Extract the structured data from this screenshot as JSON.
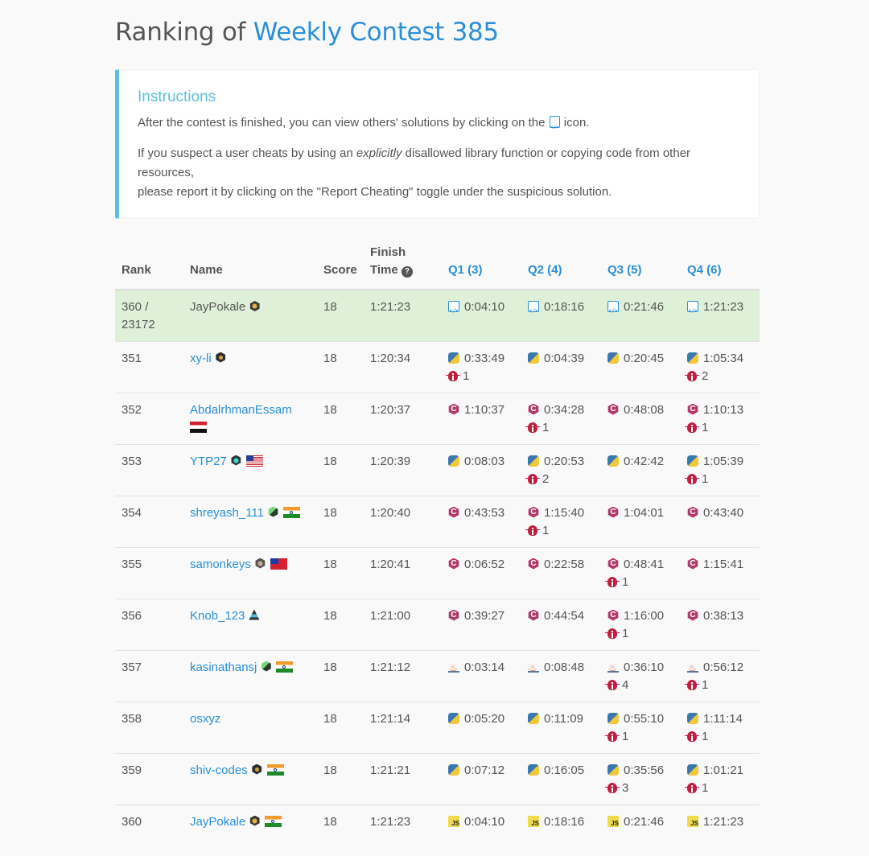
{
  "title": {
    "prefix": "Ranking of ",
    "contest": "Weekly Contest 385"
  },
  "instructions": {
    "heading": "Instructions",
    "p1_before": "After the contest is finished, you can view others' solutions by clicking on the ",
    "p1_after": " icon.",
    "p2_a": "If you suspect a user cheats by using an ",
    "p2_em": "explicitly",
    "p2_b": " disallowed library function or copying code from other resources,",
    "p2_c": "please report it by clicking on the \"Report Cheating\" toggle under the suspicious solution."
  },
  "table": {
    "headers": {
      "rank": "Rank",
      "name": "Name",
      "score": "Score",
      "finish_1": "Finish",
      "finish_2": "Time",
      "q1": "Q1 (3)",
      "q2": "Q2 (4)",
      "q3": "Q3 (5)",
      "q4": "Q4 (6)"
    },
    "rows": [
      {
        "rank": "360 / 23172",
        "name": "JayPokale",
        "badge": "gold",
        "flag": "",
        "score": "18",
        "finish": "1:21:23",
        "highlight": true,
        "q": [
          {
            "lang": "code",
            "time": "0:04:10",
            "bugs": ""
          },
          {
            "lang": "code",
            "time": "0:18:16",
            "bugs": ""
          },
          {
            "lang": "code",
            "time": "0:21:46",
            "bugs": ""
          },
          {
            "lang": "code",
            "time": "1:21:23",
            "bugs": ""
          }
        ]
      },
      {
        "rank": "351",
        "name": "xy-li",
        "badge": "dark",
        "flag": "",
        "score": "18",
        "finish": "1:20:34",
        "q": [
          {
            "lang": "py",
            "time": "0:33:49",
            "bugs": "1"
          },
          {
            "lang": "py",
            "time": "0:04:39",
            "bugs": ""
          },
          {
            "lang": "py",
            "time": "0:20:45",
            "bugs": ""
          },
          {
            "lang": "py",
            "time": "1:05:34",
            "bugs": "2"
          }
        ]
      },
      {
        "rank": "352",
        "name": "AbdalrhmanEssam",
        "badge": "",
        "flag": "eg",
        "score": "18",
        "finish": "1:20:37",
        "q": [
          {
            "lang": "cpp",
            "time": "1:10:37",
            "bugs": ""
          },
          {
            "lang": "cpp",
            "time": "0:34:28",
            "bugs": "1"
          },
          {
            "lang": "cpp",
            "time": "0:48:08",
            "bugs": ""
          },
          {
            "lang": "cpp",
            "time": "1:10:13",
            "bugs": "1"
          }
        ]
      },
      {
        "rank": "353",
        "name": "YTP27",
        "badge": "teal",
        "flag": "us",
        "score": "18",
        "finish": "1:20:39",
        "q": [
          {
            "lang": "py",
            "time": "0:08:03",
            "bugs": ""
          },
          {
            "lang": "py",
            "time": "0:20:53",
            "bugs": "2"
          },
          {
            "lang": "py",
            "time": "0:42:42",
            "bugs": ""
          },
          {
            "lang": "py",
            "time": "1:05:39",
            "bugs": "1"
          }
        ]
      },
      {
        "rank": "354",
        "name": "shreyash_111",
        "badge": "green",
        "flag": "in",
        "score": "18",
        "finish": "1:20:40",
        "q": [
          {
            "lang": "cpp",
            "time": "0:43:53",
            "bugs": ""
          },
          {
            "lang": "cpp",
            "time": "1:15:40",
            "bugs": "1"
          },
          {
            "lang": "cpp",
            "time": "1:04:01",
            "bugs": ""
          },
          {
            "lang": "cpp",
            "time": "0:43:40",
            "bugs": ""
          }
        ]
      },
      {
        "rank": "355",
        "name": "samonkeys",
        "badge": "gray",
        "flag": "tw",
        "score": "18",
        "finish": "1:20:41",
        "q": [
          {
            "lang": "cpp",
            "time": "0:06:52",
            "bugs": ""
          },
          {
            "lang": "cpp",
            "time": "0:22:58",
            "bugs": ""
          },
          {
            "lang": "cpp",
            "time": "0:48:41",
            "bugs": "1"
          },
          {
            "lang": "cpp",
            "time": "1:15:41",
            "bugs": ""
          }
        ]
      },
      {
        "rank": "356",
        "name": "Knob_123",
        "badge": "guard",
        "flag": "",
        "score": "18",
        "finish": "1:21:00",
        "q": [
          {
            "lang": "cpp",
            "time": "0:39:27",
            "bugs": ""
          },
          {
            "lang": "cpp",
            "time": "0:44:54",
            "bugs": ""
          },
          {
            "lang": "cpp",
            "time": "1:16:00",
            "bugs": "1"
          },
          {
            "lang": "cpp",
            "time": "0:38:13",
            "bugs": ""
          }
        ]
      },
      {
        "rank": "357",
        "name": "kasinathansj",
        "badge": "green",
        "flag": "in",
        "score": "18",
        "finish": "1:21:12",
        "q": [
          {
            "lang": "java",
            "time": "0:03:14",
            "bugs": ""
          },
          {
            "lang": "java",
            "time": "0:08:48",
            "bugs": ""
          },
          {
            "lang": "java",
            "time": "0:36:10",
            "bugs": "4"
          },
          {
            "lang": "java",
            "time": "0:56:12",
            "bugs": "1"
          }
        ]
      },
      {
        "rank": "358",
        "name": "osxyz",
        "badge": "",
        "flag": "",
        "score": "18",
        "finish": "1:21:14",
        "q": [
          {
            "lang": "py",
            "time": "0:05:20",
            "bugs": ""
          },
          {
            "lang": "py",
            "time": "0:11:09",
            "bugs": ""
          },
          {
            "lang": "py",
            "time": "0:55:10",
            "bugs": "1"
          },
          {
            "lang": "py",
            "time": "1:11:14",
            "bugs": "1"
          }
        ]
      },
      {
        "rank": "359",
        "name": "shiv-codes",
        "badge": "dark",
        "flag": "in",
        "score": "18",
        "finish": "1:21:21",
        "q": [
          {
            "lang": "py",
            "time": "0:07:12",
            "bugs": ""
          },
          {
            "lang": "py",
            "time": "0:16:05",
            "bugs": ""
          },
          {
            "lang": "py",
            "time": "0:35:56",
            "bugs": "3"
          },
          {
            "lang": "py",
            "time": "1:01:21",
            "bugs": "1"
          }
        ]
      },
      {
        "rank": "360",
        "name": "JayPokale",
        "badge": "gold",
        "flag": "in",
        "score": "18",
        "finish": "1:21:23",
        "q": [
          {
            "lang": "js",
            "time": "0:04:10",
            "bugs": ""
          },
          {
            "lang": "js",
            "time": "0:18:16",
            "bugs": ""
          },
          {
            "lang": "js",
            "time": "0:21:46",
            "bugs": ""
          },
          {
            "lang": "js",
            "time": "1:21:23",
            "bugs": ""
          }
        ]
      }
    ]
  },
  "icons": {
    "code": "code-icon",
    "py": "python-icon",
    "cpp": "cpp-icon",
    "java": "java-icon",
    "js": "javascript-icon",
    "bug": "bug-icon",
    "help": "question-circle-icon"
  },
  "colors": {
    "link": "#2a8fd8",
    "info": "#5bc0de",
    "highlight_row": "#dff0d8",
    "bug": "#c02040"
  }
}
